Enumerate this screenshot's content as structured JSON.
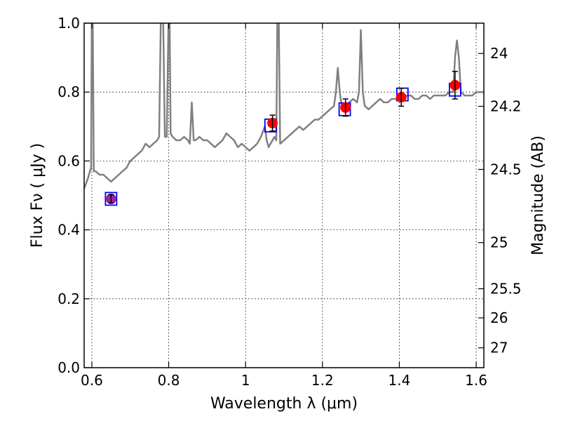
{
  "chart_data": {
    "type": "line",
    "title": "",
    "xlabel": "Wavelength  λ (μm)",
    "ylabel": "Flux  Fν  ( μJy )",
    "y2label": "Magnitude (AB)",
    "xlim": [
      0.58,
      1.62
    ],
    "ylim": [
      0.0,
      1.0
    ],
    "grid": true,
    "x_ticks": [
      0.6,
      0.8,
      1.0,
      1.2,
      1.4,
      1.6
    ],
    "x_tick_labels": [
      "0.6",
      "0.8",
      "1",
      "1.2",
      "1.4",
      "1.6"
    ],
    "y_ticks": [
      0.0,
      0.2,
      0.4,
      0.6,
      0.8,
      1.0
    ],
    "y_tick_labels": [
      "0.0",
      "0.2",
      "0.4",
      "0.6",
      "0.8",
      "1.0"
    ],
    "y2_ticks": [
      24,
      24.2,
      24.5,
      25,
      25.5,
      26,
      27
    ],
    "y2_tick_labels": [
      "24",
      "24.2",
      "24.5",
      "25",
      "25.5",
      "26",
      "27"
    ],
    "colors": {
      "spectrum": "#808080",
      "observed": "#ff0000",
      "model_box": "#0000ff",
      "first_point": "#a020a0",
      "errorbar": "#000000"
    },
    "series": [
      {
        "type": "line",
        "color": "#808080",
        "x": [
          0.58,
          0.59,
          0.595,
          0.598,
          0.6,
          0.602,
          0.605,
          0.61,
          0.62,
          0.63,
          0.64,
          0.65,
          0.66,
          0.67,
          0.68,
          0.69,
          0.7,
          0.71,
          0.72,
          0.73,
          0.74,
          0.75,
          0.76,
          0.77,
          0.775,
          0.78,
          0.785,
          0.79,
          0.795,
          0.8,
          0.802,
          0.805,
          0.81,
          0.82,
          0.83,
          0.84,
          0.85,
          0.855,
          0.86,
          0.865,
          0.87,
          0.88,
          0.89,
          0.9,
          0.91,
          0.92,
          0.93,
          0.94,
          0.95,
          0.96,
          0.97,
          0.98,
          0.99,
          1.0,
          1.01,
          1.02,
          1.03,
          1.04,
          1.05,
          1.055,
          1.06,
          1.065,
          1.07,
          1.075,
          1.08,
          1.083,
          1.086,
          1.09,
          1.1,
          1.11,
          1.12,
          1.13,
          1.14,
          1.15,
          1.16,
          1.17,
          1.18,
          1.19,
          1.2,
          1.21,
          1.22,
          1.23,
          1.235,
          1.24,
          1.245,
          1.25,
          1.26,
          1.27,
          1.28,
          1.29,
          1.295,
          1.3,
          1.305,
          1.31,
          1.32,
          1.33,
          1.34,
          1.35,
          1.36,
          1.37,
          1.38,
          1.39,
          1.4,
          1.41,
          1.42,
          1.43,
          1.44,
          1.45,
          1.46,
          1.47,
          1.48,
          1.49,
          1.5,
          1.51,
          1.52,
          1.53,
          1.54,
          1.545,
          1.55,
          1.555,
          1.56,
          1.57,
          1.58,
          1.59,
          1.6,
          1.61,
          1.62
        ],
        "y": [
          0.52,
          0.55,
          0.57,
          0.58,
          1.05,
          1.05,
          0.57,
          0.57,
          0.56,
          0.56,
          0.55,
          0.54,
          0.55,
          0.56,
          0.57,
          0.58,
          0.6,
          0.61,
          0.62,
          0.63,
          0.65,
          0.64,
          0.65,
          0.66,
          0.67,
          1.05,
          1.05,
          0.67,
          0.67,
          1.05,
          1.05,
          0.68,
          0.67,
          0.66,
          0.66,
          0.67,
          0.66,
          0.65,
          0.77,
          0.66,
          0.66,
          0.67,
          0.66,
          0.66,
          0.65,
          0.64,
          0.65,
          0.66,
          0.68,
          0.67,
          0.66,
          0.64,
          0.65,
          0.64,
          0.63,
          0.64,
          0.65,
          0.67,
          0.7,
          0.66,
          0.64,
          0.65,
          0.66,
          0.67,
          0.66,
          1.05,
          1.05,
          0.65,
          0.66,
          0.67,
          0.68,
          0.69,
          0.7,
          0.69,
          0.7,
          0.71,
          0.72,
          0.72,
          0.73,
          0.74,
          0.75,
          0.76,
          0.8,
          0.87,
          0.8,
          0.76,
          0.76,
          0.77,
          0.78,
          0.77,
          0.8,
          0.98,
          0.8,
          0.76,
          0.75,
          0.76,
          0.77,
          0.78,
          0.77,
          0.77,
          0.78,
          0.78,
          0.78,
          0.78,
          0.79,
          0.79,
          0.78,
          0.78,
          0.79,
          0.79,
          0.78,
          0.79,
          0.79,
          0.79,
          0.79,
          0.8,
          0.8,
          0.9,
          0.95,
          0.9,
          0.8,
          0.79,
          0.79,
          0.79,
          0.8,
          0.8,
          0.8
        ]
      },
      {
        "type": "scatter",
        "color": "#ff0000",
        "x": [
          0.65,
          1.07,
          1.26,
          1.405,
          1.545
        ],
        "y": [
          0.49,
          0.71,
          0.755,
          0.785,
          0.82
        ],
        "yerr": [
          0.012,
          0.023,
          0.025,
          0.026,
          0.04
        ]
      },
      {
        "type": "boxes",
        "color": "#0000ff",
        "x": [
          0.65,
          1.065,
          1.258,
          1.408,
          1.545
        ],
        "y": [
          0.49,
          0.703,
          0.75,
          0.793,
          0.807
        ]
      }
    ]
  }
}
